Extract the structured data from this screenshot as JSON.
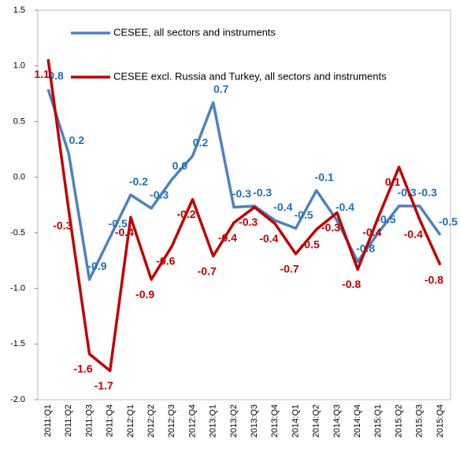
{
  "chart_data": {
    "type": "line",
    "categories": [
      "2011:Q1",
      "2011:Q2",
      "2011:Q3",
      "2011:Q4",
      "2012:Q1",
      "2012:Q2",
      "2012:Q3",
      "2012:Q4",
      "2013:Q1",
      "2013:Q2",
      "2013:Q3",
      "2013:Q4",
      "2014:Q1",
      "2014:Q2",
      "2014:Q3",
      "2014:Q4",
      "2015:Q1",
      "2015:Q2",
      "2015:Q3",
      "2015:Q4"
    ],
    "series": [
      {
        "name": "CESEE, all sectors and instruments",
        "color": "#4f81bd",
        "label_color": "#1f6fb8",
        "values": [
          0.79,
          0.21,
          -0.92,
          -0.54,
          -0.16,
          -0.28,
          -0.02,
          0.19,
          0.67,
          -0.27,
          -0.26,
          -0.39,
          -0.46,
          -0.12,
          -0.39,
          -0.76,
          -0.5,
          -0.26,
          -0.26,
          -0.52
        ],
        "value_labels": [
          "0.8",
          "0.2",
          "-0.9",
          "-0.5",
          "-0.2",
          "-0.3",
          "0.0",
          "0.2",
          "0.7",
          "-0.3",
          "-0.3",
          "-0.4",
          "-0.5",
          "-0.1",
          "-0.4",
          "-0.8",
          "-0.5",
          "-0.3",
          "-0.3",
          "-0.5"
        ]
      },
      {
        "name": "CESEE excl. Russia and Turkey, all sectors and instruments",
        "color": "#c00000",
        "label_color": "#c00000",
        "values": [
          1.06,
          -0.3,
          -1.59,
          -1.74,
          -0.36,
          -0.92,
          -0.62,
          -0.2,
          -0.71,
          -0.41,
          -0.27,
          -0.42,
          -0.69,
          -0.47,
          -0.32,
          -0.83,
          -0.36,
          0.09,
          -0.38,
          -0.79
        ],
        "value_labels": [
          "1.1",
          "-0.3",
          "-1.6",
          "-1.7",
          "-0.4",
          "-0.9",
          "-0.6",
          "-0.2",
          "-0.7",
          "-0.4",
          "-0.3",
          "-0.4",
          "-0.7",
          "-0.5",
          "-0.3",
          "-0.8",
          "-0.4",
          "0.1",
          "-0.4",
          "-0.8"
        ]
      }
    ],
    "ylim": [
      -2,
      1.5
    ],
    "yticks": [
      {
        "value": -2,
        "label": "-2.0"
      },
      -1.5,
      {
        "value": -1,
        "label": "-1.0"
      },
      -0.5,
      {
        "value": 0,
        "label": "0.0"
      },
      0.5,
      {
        "value": 1,
        "label": "1.0"
      },
      1.5
    ],
    "legend": "upper left",
    "grid": false
  }
}
